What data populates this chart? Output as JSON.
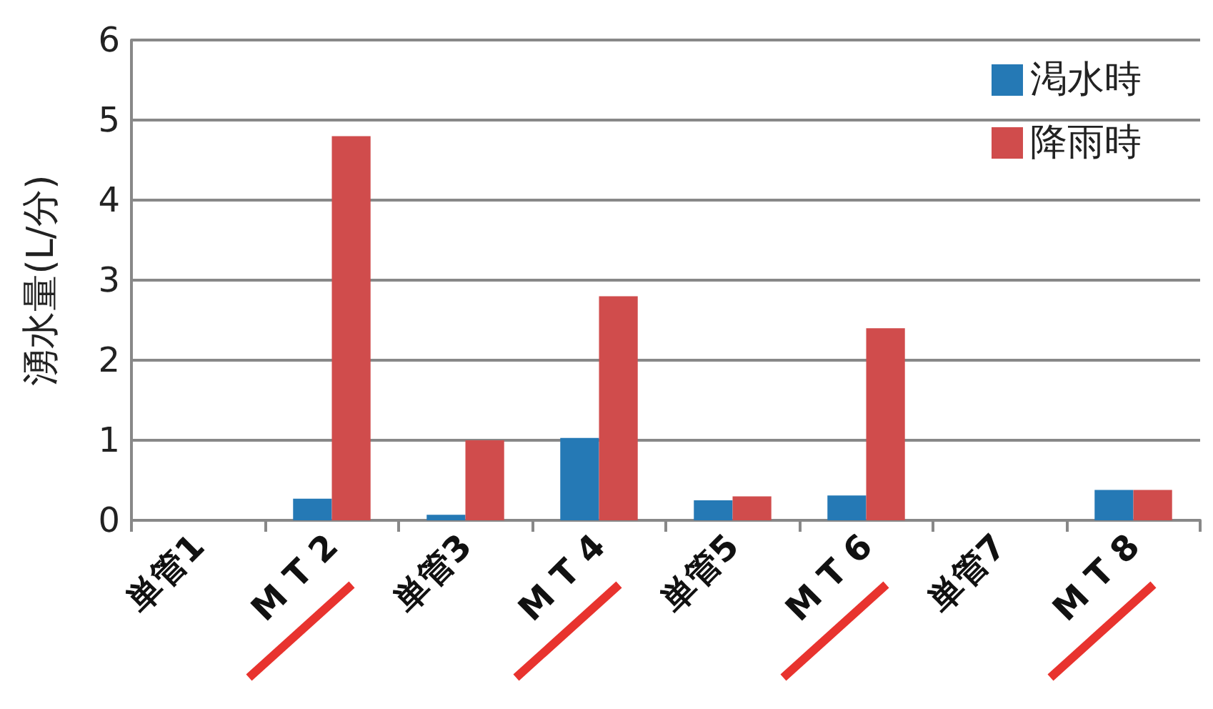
{
  "chart_data": {
    "type": "bar",
    "ylabel": "湧水量(L/分)",
    "categories": [
      "単管1",
      "M T 2",
      "単管3",
      "M T 4",
      "単管5",
      "M T 6",
      "単管7",
      "M T 8"
    ],
    "series": [
      {
        "name": "渇水時",
        "color": "#2579b5",
        "values": [
          0,
          0.27,
          0.07,
          1.03,
          0.25,
          0.31,
          0,
          0.38
        ]
      },
      {
        "name": "降雨時",
        "color": "#d04c4c",
        "values": [
          0,
          4.8,
          1.0,
          2.8,
          0.3,
          2.4,
          0,
          0.38
        ]
      }
    ],
    "ylim": [
      0,
      6
    ],
    "yticks": [
      0,
      1,
      2,
      3,
      4,
      5,
      6
    ],
    "grid": "y",
    "legend": "top right"
  }
}
